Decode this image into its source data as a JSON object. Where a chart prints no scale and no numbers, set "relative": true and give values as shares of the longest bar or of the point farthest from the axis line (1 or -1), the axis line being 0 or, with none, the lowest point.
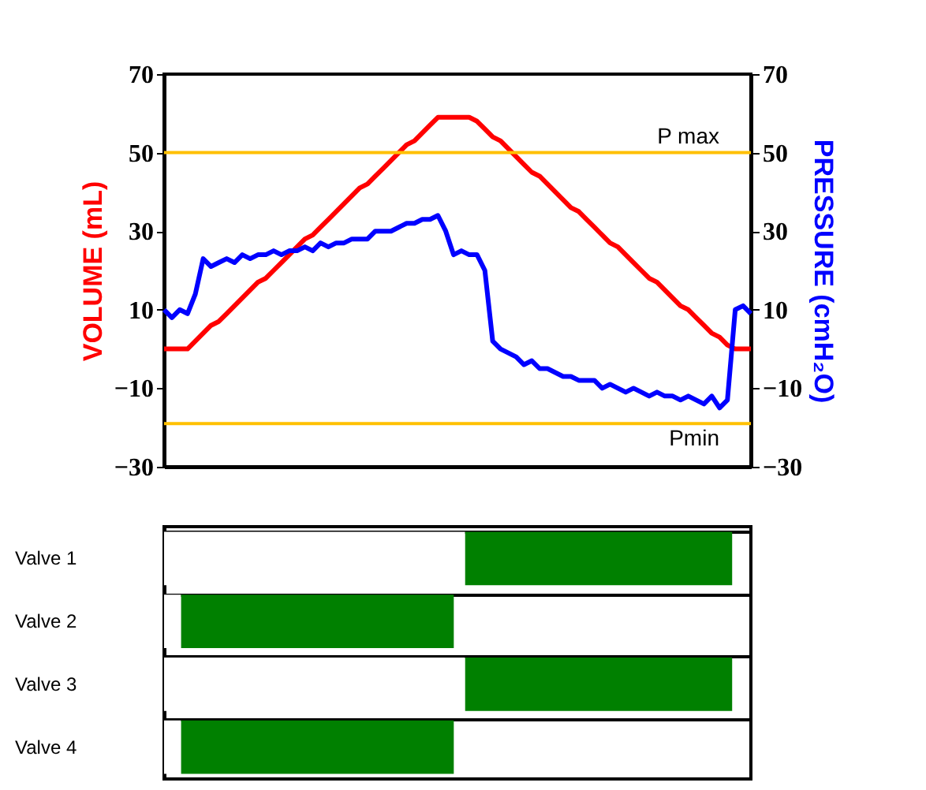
{
  "chart_data": [
    {
      "type": "line",
      "ylabel": "VOLUME (mL)",
      "y2label": "PRESSURE (cmH₂O)",
      "tick_labels": "y",
      "categories": [
        null,
        null,
        null,
        null,
        null,
        null,
        null,
        null,
        null,
        null,
        null,
        null,
        null,
        null,
        null,
        null,
        null,
        null,
        null,
        null,
        null,
        null,
        null,
        null,
        null,
        null,
        null,
        null,
        null,
        null,
        null,
        null,
        null,
        null,
        null,
        null,
        null,
        null,
        null,
        null,
        null,
        null,
        null,
        null,
        null,
        null,
        null,
        null,
        null,
        null,
        null,
        null,
        null,
        null,
        null,
        null,
        null,
        null,
        null,
        null,
        null,
        null,
        null,
        null,
        null,
        null,
        null,
        null,
        null,
        null,
        null,
        null,
        null,
        null,
        null,
        null
      ],
      "series": [
        {
          "color": "#ff0000",
          "axis": "y",
          "values": [
            0,
            0,
            0,
            0,
            2,
            4,
            6,
            7,
            9,
            11,
            13,
            15,
            17,
            18,
            20,
            22,
            24,
            26,
            28,
            29,
            31,
            33,
            35,
            37,
            39,
            41,
            42,
            44,
            46,
            48,
            50,
            52,
            53,
            55,
            57,
            59,
            59,
            59,
            59,
            59,
            58,
            56,
            54,
            53,
            51,
            49,
            47,
            45,
            44,
            42,
            40,
            38,
            36,
            35,
            33,
            31,
            29,
            27,
            26,
            24,
            22,
            20,
            18,
            17,
            15,
            13,
            11,
            10,
            8,
            6,
            4,
            3,
            1,
            0,
            0,
            0
          ]
        },
        {
          "color": "#0000ff",
          "axis": "y2",
          "values": [
            10,
            8,
            10,
            9,
            14,
            23,
            21,
            22,
            23,
            22,
            24,
            23,
            24,
            24,
            25,
            24,
            25,
            25,
            26,
            25,
            27,
            26,
            27,
            27,
            28,
            28,
            28,
            30,
            30,
            30,
            31,
            32,
            32,
            33,
            33,
            34,
            30,
            24,
            25,
            24,
            24,
            20,
            2,
            0,
            -1,
            -2,
            -4,
            -3,
            -5,
            -5,
            -6,
            -7,
            -7,
            -8,
            -8,
            -8,
            -10,
            -9,
            -10,
            -11,
            -10,
            -11,
            -12,
            -11,
            -12,
            -12,
            -13,
            -12,
            -13,
            -14,
            -12,
            -15,
            -13,
            10,
            11,
            9
          ]
        }
      ],
      "ylim": [
        -30,
        70
      ],
      "yticks": [
        -30,
        -10,
        10,
        30,
        50,
        70
      ],
      "y2lim": [
        -30,
        70
      ],
      "y2ticks": [
        -30,
        -10,
        10,
        30,
        50,
        70
      ],
      "ref_lines": [
        {
          "axis": "y",
          "value": 50,
          "label": "P max",
          "color": "#ffc000"
        },
        {
          "axis": "y",
          "value": -19,
          "label": "Pmin",
          "color": "#ffc000"
        }
      ]
    },
    {
      "type": "bar",
      "orientation": "horizontal",
      "relative": true,
      "stacked": true,
      "grid": "y",
      "categories": [
        "Valve 1",
        "Valve 2",
        "Valve 3",
        "Valve 4"
      ],
      "series": [
        {
          "color": "#ffffff",
          "values": [
            0.53,
            0.03,
            0.53,
            0.03
          ]
        },
        {
          "color": "#008000",
          "values": [
            0.47,
            0.48,
            0.47,
            0.48
          ]
        }
      ]
    }
  ]
}
